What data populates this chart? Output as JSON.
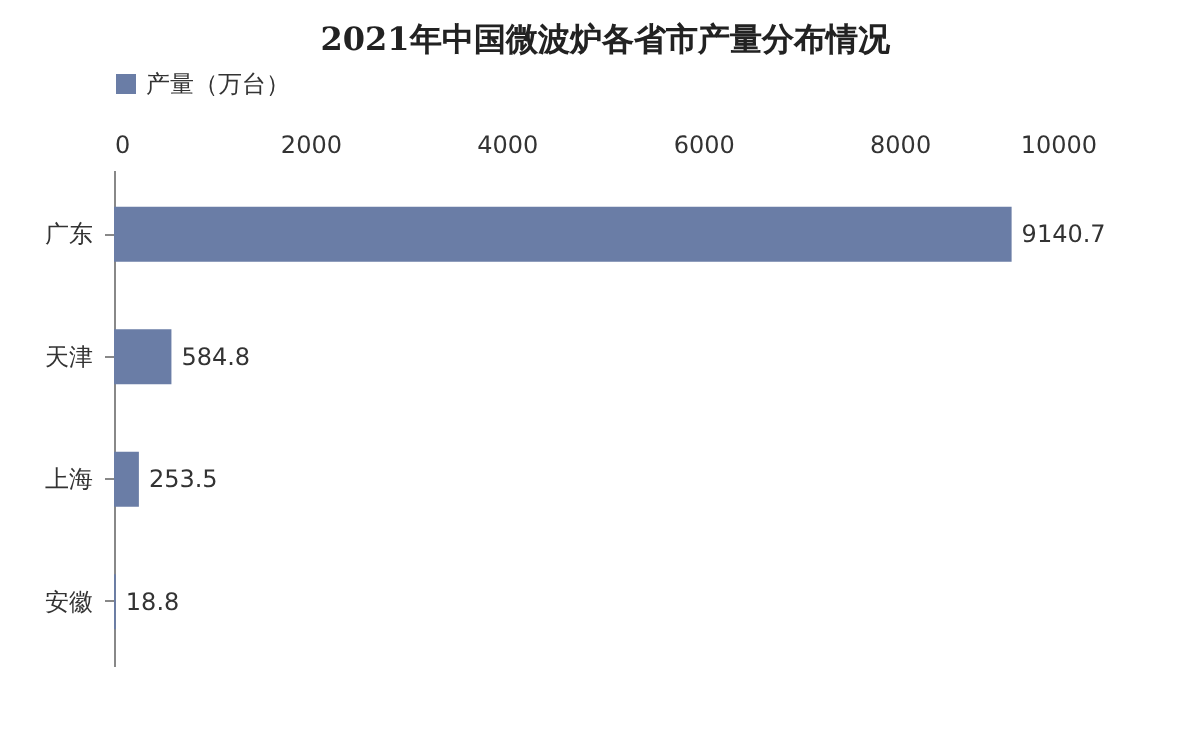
{
  "chart_data": {
    "type": "bar",
    "orientation": "horizontal",
    "title": "2021年中国微波炉各省市产量分布情况",
    "categories": [
      "广东",
      "天津",
      "上海",
      "安徽"
    ],
    "series": [
      {
        "name": "产量（万台）",
        "color": "#6a7da6",
        "values": [
          9140.7,
          584.8,
          253.5,
          18.8
        ]
      }
    ],
    "xlim": [
      0,
      10000
    ],
    "xticks": [
      0,
      2000,
      4000,
      6000,
      8000,
      10000
    ],
    "grid": false,
    "legend": "top",
    "data_labels": true
  }
}
